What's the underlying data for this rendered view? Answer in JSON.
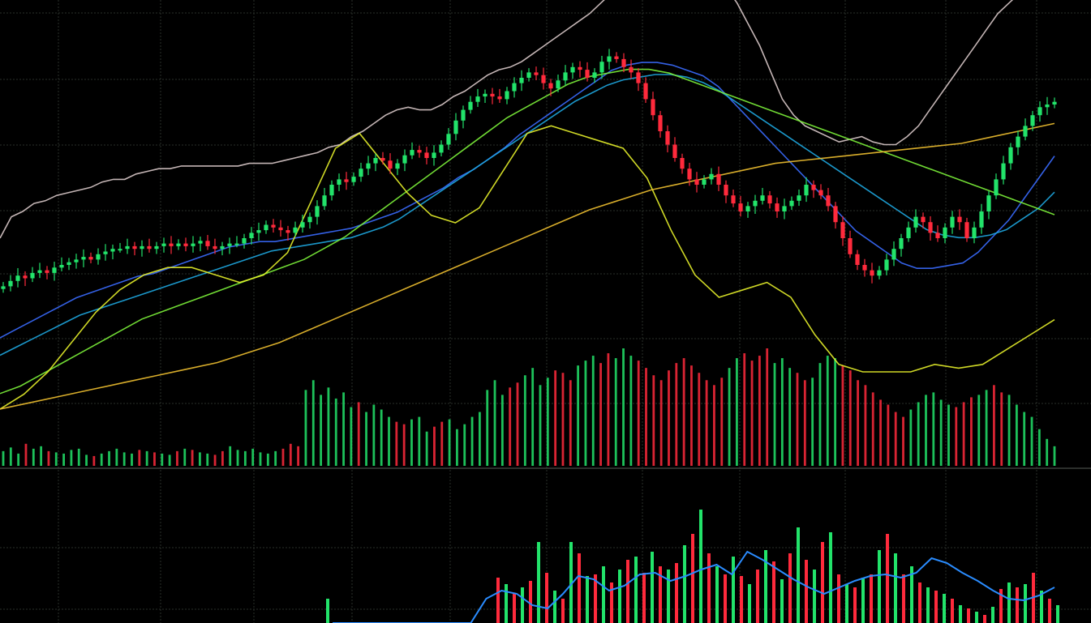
{
  "chart_data": {
    "type": "candlestick",
    "title": "",
    "xlabel": "",
    "ylabel": "",
    "grid": true,
    "colors": {
      "background": "#000000",
      "grid": "#2a2f2a",
      "up": "#22e36a",
      "down": "#ff2a3c",
      "ma_white": "#d9c9c9",
      "ma_blue": "#3a6cff",
      "ma_cyan": "#1ea7e0",
      "ma_green": "#7cf23a",
      "ma_yellow": "#e6ef2a",
      "ma_orange": "#f0c030",
      "osc_line": "#2a8cff"
    },
    "price_range": [
      0,
      100
    ],
    "candles": {
      "close_series": [
        32,
        34,
        36,
        35,
        37,
        38,
        37,
        39,
        40,
        41,
        42,
        43,
        42,
        44,
        45,
        46,
        46,
        47,
        46,
        47,
        46,
        47,
        48,
        47,
        48,
        47,
        48,
        49,
        47,
        46,
        47,
        48,
        48,
        50,
        52,
        53,
        55,
        54,
        53,
        52,
        54,
        56,
        58,
        62,
        66,
        70,
        72,
        71,
        73,
        76,
        78,
        80,
        79,
        76,
        78,
        81,
        83,
        82,
        80,
        82,
        85,
        89,
        94,
        98,
        101,
        103,
        104,
        103,
        102,
        105,
        108,
        110,
        112,
        111,
        108,
        106,
        109,
        112,
        114,
        113,
        110,
        112,
        116,
        118,
        117,
        114,
        112,
        108,
        102,
        96,
        90,
        85,
        80,
        76,
        72,
        70,
        72,
        74,
        70,
        66,
        63,
        60,
        62,
        64,
        66,
        63,
        60,
        62,
        64,
        66,
        70,
        68,
        66,
        62,
        56,
        50,
        44,
        40,
        38,
        36,
        38,
        42,
        46,
        50,
        54,
        58,
        56,
        52,
        50,
        54,
        58,
        56,
        50,
        54,
        60,
        66,
        72,
        78,
        84,
        88,
        92,
        96,
        99,
        100,
        101
      ],
      "volume_series": [
        12,
        15,
        10,
        18,
        14,
        16,
        12,
        11,
        10,
        13,
        14,
        9,
        8,
        10,
        12,
        14,
        11,
        10,
        13,
        12,
        11,
        10,
        9,
        12,
        14,
        13,
        11,
        10,
        9,
        12,
        16,
        13,
        12,
        14,
        11,
        10,
        12,
        14,
        18,
        16,
        62,
        70,
        58,
        64,
        55,
        60,
        48,
        52,
        44,
        50,
        46,
        40,
        36,
        34,
        38,
        40,
        28,
        32,
        36,
        38,
        30,
        34,
        40,
        44,
        62,
        70,
        58,
        64,
        68,
        74,
        80,
        66,
        72,
        78,
        76,
        70,
        82,
        86,
        90,
        84,
        92,
        88,
        96,
        90,
        86,
        80,
        74,
        70,
        78,
        84,
        88,
        82,
        76,
        70,
        66,
        72,
        80,
        88,
        92,
        86,
        90,
        96,
        84,
        88,
        80,
        76,
        70,
        72,
        84,
        90,
        88,
        82,
        78,
        70,
        66,
        60,
        54,
        50,
        44,
        40,
        46,
        52,
        58,
        60,
        54,
        50,
        48,
        52,
        56,
        58,
        62,
        66,
        60,
        58,
        50,
        44,
        40,
        30,
        22,
        16
      ]
    },
    "moving_averages": {
      "white": [
        20,
        28,
        30,
        33,
        34,
        36,
        37,
        38,
        39,
        41,
        42,
        42,
        44,
        45,
        46,
        46,
        47,
        47,
        47,
        47,
        47,
        47,
        48,
        48,
        48,
        49,
        50,
        51,
        52,
        54,
        55,
        58,
        60,
        63,
        66,
        68,
        69,
        68,
        68,
        70,
        73,
        75,
        78,
        81,
        83,
        84,
        86,
        89,
        92,
        95,
        98,
        101,
        104,
        108,
        112,
        116,
        120,
        122,
        125,
        126,
        124,
        123,
        122,
        118,
        114,
        108,
        100,
        92,
        82,
        72,
        66,
        62,
        60,
        58,
        56,
        57,
        58,
        56,
        55,
        55,
        58,
        62,
        68,
        74,
        80,
        86,
        92,
        98,
        104,
        108,
        112,
        116,
        120,
        124
      ],
      "blue": [
        10,
        13,
        16,
        19,
        22,
        25,
        27,
        29,
        31,
        33,
        34,
        36,
        38,
        40,
        42,
        44,
        45,
        46,
        46,
        47,
        48,
        49,
        50,
        51,
        53,
        55,
        57,
        60,
        63,
        66,
        70,
        73,
        77,
        81,
        86,
        90,
        94,
        98,
        102,
        106,
        110,
        112,
        113,
        113,
        112,
        110,
        108,
        104,
        98,
        92,
        86,
        80,
        74,
        68,
        62,
        56,
        50,
        46,
        42,
        38,
        36,
        36,
        37,
        38,
        42,
        48,
        54,
        62,
        70,
        78
      ],
      "cyan": [
        5,
        8,
        11,
        14,
        17,
        20,
        22,
        24,
        26,
        28,
        30,
        32,
        34,
        36,
        38,
        40,
        42,
        44,
        45,
        46,
        47,
        48,
        49,
        51,
        53,
        56,
        60,
        64,
        68,
        72,
        76,
        80,
        84,
        88,
        92,
        96,
        100,
        103,
        106,
        108,
        109,
        110,
        110,
        109,
        107,
        104,
        100,
        96,
        92,
        88,
        84,
        80,
        76,
        72,
        68,
        64,
        60,
        56,
        52,
        50,
        49,
        49,
        50,
        52,
        56,
        60,
        66
      ],
      "green": [
        2,
        4,
        7,
        10,
        13,
        16,
        19,
        22,
        24,
        26,
        28,
        30,
        32,
        34,
        36,
        38,
        41,
        44,
        48,
        52,
        56,
        60,
        64,
        68,
        72,
        76,
        79,
        82,
        85,
        87,
        88,
        89,
        89,
        88,
        86,
        84,
        82,
        80,
        78,
        76,
        74,
        72,
        70,
        68,
        66,
        64,
        62,
        60,
        58,
        56,
        54,
        52,
        50
      ],
      "yellow": [
        0,
        4,
        10,
        18,
        26,
        32,
        36,
        38,
        38,
        36,
        34,
        36,
        42,
        56,
        70,
        74,
        66,
        58,
        52,
        50,
        54,
        64,
        74,
        76,
        74,
        72,
        70,
        62,
        48,
        36,
        30,
        32,
        34,
        30,
        20,
        12,
        10,
        10,
        10,
        12,
        11,
        12,
        16,
        20,
        24
      ],
      "orange": [
        0,
        2,
        4,
        6,
        8,
        10,
        12,
        14,
        17,
        20,
        24,
        28,
        32,
        36,
        40,
        44,
        48,
        52,
        56,
        60,
        63,
        66,
        68,
        70,
        72,
        74,
        75,
        76,
        77,
        78,
        79,
        80,
        82,
        84,
        86
      ]
    },
    "oscillator": {
      "histogram": [
        0,
        0,
        0,
        0,
        0,
        0,
        0,
        0,
        0,
        0,
        0,
        0,
        0,
        0,
        0,
        0,
        0,
        0,
        0,
        0,
        0,
        0,
        0,
        0,
        0,
        0,
        0,
        0,
        0,
        0,
        0,
        0,
        0,
        0,
        0,
        0,
        0,
        0,
        0,
        0,
        30,
        0,
        0,
        0,
        0,
        0,
        0,
        0,
        0,
        0,
        0,
        0,
        0,
        0,
        0,
        0,
        0,
        0,
        0,
        0,
        0,
        56,
        48,
        36,
        44,
        52,
        100,
        62,
        40,
        30,
        100,
        86,
        58,
        60,
        70,
        50,
        66,
        78,
        82,
        62,
        88,
        70,
        66,
        74,
        96,
        110,
        140,
        86,
        70,
        60,
        82,
        58,
        48,
        66,
        90,
        76,
        54,
        86,
        118,
        78,
        66,
        100,
        112,
        60,
        48,
        44,
        56,
        60,
        90,
        110,
        86,
        60,
        70,
        50,
        44,
        40,
        36,
        30,
        22,
        18,
        14,
        10,
        20,
        42,
        50,
        44,
        48,
        62,
        40,
        30,
        22
      ],
      "line": [
        0,
        0,
        0,
        0,
        0,
        0,
        0,
        0,
        0,
        0,
        30,
        40,
        36,
        22,
        18,
        36,
        58,
        54,
        40,
        46,
        60,
        62,
        52,
        58,
        66,
        72,
        60,
        88,
        78,
        66,
        54,
        44,
        36,
        44,
        52,
        58,
        60,
        56,
        62,
        80,
        74,
        62,
        52,
        40,
        30,
        28,
        34,
        44
      ]
    }
  }
}
